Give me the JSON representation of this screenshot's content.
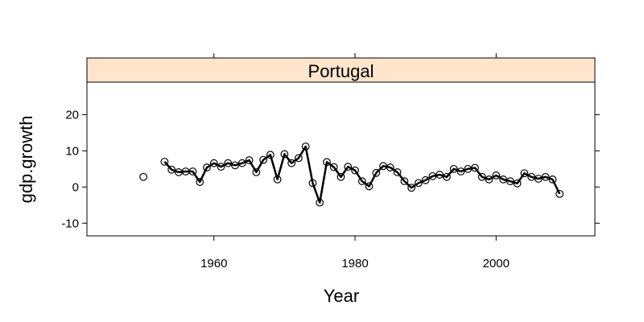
{
  "chart_data": {
    "type": "line",
    "panel": "Portugal",
    "xlabel": "Year",
    "ylabel": "gdp.growth",
    "xlim": [
      1942,
      2014
    ],
    "ylim": [
      -13.5,
      29
    ],
    "x_ticks": [
      1960,
      1980,
      2000
    ],
    "y_ticks": [
      -10,
      0,
      10,
      20
    ],
    "x_tick_labels": [
      "1960",
      "1980",
      "2000"
    ],
    "y_tick_labels": [
      "-10",
      "0",
      "10",
      "20"
    ],
    "strip_color": "#ffe5cc",
    "line_color": "#000000",
    "grid": false,
    "series": [
      {
        "x": [
          1950,
          1953,
          1954,
          1955,
          1956,
          1957,
          1958,
          1959,
          1960,
          1961,
          1962,
          1963,
          1964,
          1965,
          1966,
          1967,
          1968,
          1969,
          1970,
          1971,
          1972,
          1973,
          1974,
          1975,
          1976,
          1977,
          1978,
          1979,
          1980,
          1981,
          1982,
          1983,
          1984,
          1985,
          1986,
          1987,
          1988,
          1989,
          1990,
          1991,
          1992,
          1993,
          1994,
          1995,
          1996,
          1997,
          1998,
          1999,
          2000,
          2001,
          2002,
          2003,
          2004,
          2005,
          2006,
          2007,
          2008,
          2009
        ],
        "y": [
          2.8,
          7.0,
          4.8,
          4.1,
          4.3,
          4.3,
          1.4,
          5.4,
          6.6,
          5.6,
          6.6,
          6.0,
          6.6,
          7.4,
          4.1,
          7.5,
          8.9,
          2.1,
          9.1,
          6.6,
          8.0,
          11.2,
          1.1,
          -4.3,
          6.9,
          5.5,
          2.8,
          5.6,
          4.6,
          1.6,
          0.2,
          3.9,
          5.8,
          5.4,
          4.1,
          1.6,
          -0.2,
          1.1,
          1.9,
          3.0,
          3.4,
          2.8,
          5.0,
          4.3,
          5.0,
          5.3,
          2.8,
          2.1,
          3.2,
          2.1,
          1.6,
          1.0,
          3.8,
          2.8,
          2.3,
          2.8,
          2.1,
          -1.9
        ]
      }
    ]
  }
}
